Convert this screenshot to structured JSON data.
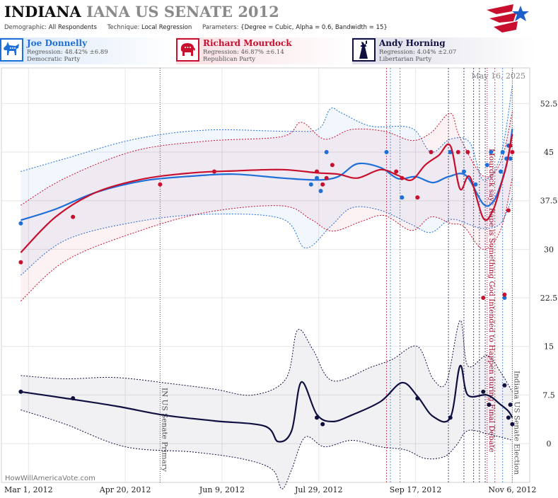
{
  "header": {
    "state": "INDIANA",
    "race": "IANA US SENATE 2012",
    "demographic_label": "Demographic:",
    "demographic": "All Respondents",
    "technique_label": "Technique:",
    "technique": "Local Regression",
    "parameters_label": "Parameters:",
    "parameters": "{Degree = Cubic, Alpha = 0.6, Bandwidth = 15}"
  },
  "candidates": [
    {
      "name": "Joe Donnelly",
      "regression": "Regression: 48.42% ±6.89",
      "party": "Democratic Party",
      "color": "#1f6fd8",
      "icon": "donkey-icon"
    },
    {
      "name": "Richard Mourdock",
      "regression": "Regression: 46.87% ±6.14",
      "party": "Republican Party",
      "color": "#c8102e",
      "icon": "elephant-icon"
    },
    {
      "name": "Andy Horning",
      "regression": "Regression: 4.04% ±2.07",
      "party": "Libertarian Party",
      "color": "#101040",
      "icon": "liberty-icon"
    }
  ],
  "date_stamp": "May 16, 2025",
  "credit": "HowWillAmericaVote.com",
  "chart_data": {
    "type": "line",
    "x_ticks": [
      "Mar 1, 2012",
      "Apr 20, 2012",
      "Jun 9, 2012",
      "Jul 29, 2012",
      "Sep 17, 2012",
      "Nov 6, 2012"
    ],
    "y_ticks": [
      0,
      7.5,
      15,
      22.5,
      30,
      37.5,
      45,
      52.5
    ],
    "ylim": [
      -6,
      58
    ],
    "xlim": [
      "2012-02-16",
      "2012-11-15"
    ],
    "events": [
      {
        "date": "2012-05-08",
        "label": "IN US Senate Primary",
        "color": "#555555"
      },
      {
        "date": "2012-10-24",
        "label": "Mourdock says Rape is Something God Intended to Happen during Final Debate",
        "color": "#a01030"
      },
      {
        "date": "2012-11-06",
        "label": "Indiana US Senate Election",
        "color": "#555555"
      }
    ],
    "series": [
      {
        "name": "Joe Donnelly",
        "color": "#1f6fd8",
        "line": [
          [
            "2012-02-26",
            34.5
          ],
          [
            "2012-03-15",
            36.2
          ],
          [
            "2012-04-05",
            38.8
          ],
          [
            "2012-04-30",
            40.6
          ],
          [
            "2012-05-25",
            41.3
          ],
          [
            "2012-06-15",
            41.6
          ],
          [
            "2012-07-10",
            41
          ],
          [
            "2012-07-28",
            40.7
          ],
          [
            "2012-08-08",
            41.2
          ],
          [
            "2012-08-18",
            43.2
          ],
          [
            "2012-08-30",
            42.6
          ],
          [
            "2012-09-08",
            40.9
          ],
          [
            "2012-09-17",
            41.2
          ],
          [
            "2012-09-26",
            40.3
          ],
          [
            "2012-10-04",
            41.2
          ],
          [
            "2012-10-13",
            41.4
          ],
          [
            "2012-10-22",
            37
          ],
          [
            "2012-10-27",
            37.3
          ],
          [
            "2012-10-31",
            40
          ],
          [
            "2012-11-04",
            44.4
          ],
          [
            "2012-11-06",
            48.6
          ]
        ],
        "upper": [
          [
            "2012-02-26",
            42
          ],
          [
            "2012-03-20",
            44
          ],
          [
            "2012-04-25",
            47
          ],
          [
            "2012-06-01",
            48.4
          ],
          [
            "2012-07-15",
            48.2
          ],
          [
            "2012-07-29",
            48.6
          ],
          [
            "2012-08-04",
            51.7
          ],
          [
            "2012-08-10",
            51
          ],
          [
            "2012-08-25",
            49
          ],
          [
            "2012-09-15",
            48.7
          ],
          [
            "2012-09-25",
            45
          ],
          [
            "2012-10-05",
            47
          ],
          [
            "2012-10-15",
            46.5
          ],
          [
            "2012-10-22",
            40.7
          ],
          [
            "2012-10-31",
            44.5
          ],
          [
            "2012-11-06",
            55.2
          ]
        ],
        "lower": [
          [
            "2012-02-26",
            26
          ],
          [
            "2012-03-20",
            31.4
          ],
          [
            "2012-04-25",
            34.2
          ],
          [
            "2012-06-01",
            35.4
          ],
          [
            "2012-07-10",
            34.7
          ],
          [
            "2012-07-22",
            30.2
          ],
          [
            "2012-08-04",
            33.5
          ],
          [
            "2012-08-15",
            36.4
          ],
          [
            "2012-08-30",
            36
          ],
          [
            "2012-09-15",
            33.8
          ],
          [
            "2012-09-25",
            32.6
          ],
          [
            "2012-10-05",
            34.6
          ],
          [
            "2012-10-15",
            33.8
          ],
          [
            "2012-10-22",
            33.2
          ],
          [
            "2012-10-31",
            34
          ],
          [
            "2012-11-06",
            38
          ]
        ],
        "points": [
          [
            "2012-02-26",
            34
          ],
          [
            "2012-07-25",
            40
          ],
          [
            "2012-07-28",
            41
          ],
          [
            "2012-07-30",
            39
          ],
          [
            "2012-08-02",
            45
          ],
          [
            "2012-09-02",
            45
          ],
          [
            "2012-09-10",
            38
          ],
          [
            "2012-10-05",
            45
          ],
          [
            "2012-10-12",
            42
          ],
          [
            "2012-10-18",
            40
          ],
          [
            "2012-10-24",
            43
          ],
          [
            "2012-10-26",
            45
          ],
          [
            "2012-10-31",
            42
          ],
          [
            "2012-11-01",
            45
          ],
          [
            "2012-11-02",
            22.5
          ],
          [
            "2012-11-03",
            44
          ],
          [
            "2012-11-04",
            46
          ],
          [
            "2012-11-05",
            44
          ]
        ]
      },
      {
        "name": "Richard Mourdock",
        "color": "#c8102e",
        "line": [
          [
            "2012-02-26",
            29.5
          ],
          [
            "2012-03-15",
            35
          ],
          [
            "2012-04-05",
            38.8
          ],
          [
            "2012-04-30",
            40.9
          ],
          [
            "2012-05-25",
            41.8
          ],
          [
            "2012-06-15",
            42.1
          ],
          [
            "2012-07-10",
            42.3
          ],
          [
            "2012-07-28",
            41.8
          ],
          [
            "2012-08-08",
            41.6
          ],
          [
            "2012-08-18",
            41
          ],
          [
            "2012-08-30",
            42.3
          ],
          [
            "2012-09-08",
            41.4
          ],
          [
            "2012-09-15",
            40.7
          ],
          [
            "2012-09-22",
            43
          ],
          [
            "2012-09-29",
            44.5
          ],
          [
            "2012-10-05",
            46
          ],
          [
            "2012-10-10",
            39.3
          ],
          [
            "2012-10-15",
            41.2
          ],
          [
            "2012-10-22",
            34.8
          ],
          [
            "2012-10-27",
            36
          ],
          [
            "2012-10-31",
            39.8
          ],
          [
            "2012-11-03",
            43
          ],
          [
            "2012-11-06",
            47.8
          ]
        ],
        "upper": [
          [
            "2012-02-26",
            36.8
          ],
          [
            "2012-03-20",
            41
          ],
          [
            "2012-04-25",
            45.2
          ],
          [
            "2012-06-01",
            46.7
          ],
          [
            "2012-07-10",
            47.4
          ],
          [
            "2012-07-20",
            49.6
          ],
          [
            "2012-08-01",
            47
          ],
          [
            "2012-08-15",
            48.5
          ],
          [
            "2012-09-01",
            48.2
          ],
          [
            "2012-09-15",
            46.8
          ],
          [
            "2012-09-25",
            48
          ],
          [
            "2012-10-05",
            51
          ],
          [
            "2012-10-10",
            47.2
          ],
          [
            "2012-10-22",
            41.3
          ],
          [
            "2012-10-31",
            43.5
          ],
          [
            "2012-11-06",
            51.2
          ]
        ],
        "lower": [
          [
            "2012-02-26",
            22
          ],
          [
            "2012-03-20",
            28.2
          ],
          [
            "2012-04-25",
            32.6
          ],
          [
            "2012-06-01",
            35.7
          ],
          [
            "2012-07-10",
            36.7
          ],
          [
            "2012-07-25",
            34.6
          ],
          [
            "2012-08-05",
            32.8
          ],
          [
            "2012-08-20",
            34.3
          ],
          [
            "2012-09-01",
            35.2
          ],
          [
            "2012-09-15",
            32.9
          ],
          [
            "2012-09-25",
            35
          ],
          [
            "2012-10-05",
            34
          ],
          [
            "2012-10-12",
            33.5
          ],
          [
            "2012-10-22",
            30
          ],
          [
            "2012-10-31",
            33
          ],
          [
            "2012-11-06",
            41
          ]
        ],
        "points": [
          [
            "2012-02-26",
            28
          ],
          [
            "2012-03-24",
            35
          ],
          [
            "2012-05-08",
            40
          ],
          [
            "2012-06-05",
            42
          ],
          [
            "2012-07-28",
            42
          ],
          [
            "2012-07-31",
            40
          ],
          [
            "2012-08-02",
            41
          ],
          [
            "2012-08-05",
            43
          ],
          [
            "2012-09-07",
            42
          ],
          [
            "2012-09-10",
            41
          ],
          [
            "2012-09-18",
            38
          ],
          [
            "2012-09-25",
            45
          ],
          [
            "2012-10-09",
            45
          ],
          [
            "2012-10-14",
            45
          ],
          [
            "2012-10-22",
            22.5
          ],
          [
            "2012-11-02",
            23
          ],
          [
            "2012-11-04",
            36
          ],
          [
            "2012-11-05",
            46
          ],
          [
            "2012-11-06",
            45
          ]
        ]
      },
      {
        "name": "Andy Horning",
        "color": "#101040",
        "line": [
          [
            "2012-02-26",
            8
          ],
          [
            "2012-03-20",
            7
          ],
          [
            "2012-04-15",
            5.8
          ],
          [
            "2012-05-10",
            4.4
          ],
          [
            "2012-06-05",
            3.5
          ],
          [
            "2012-07-01",
            2.7
          ],
          [
            "2012-07-08",
            0.3
          ],
          [
            "2012-07-15",
            2
          ],
          [
            "2012-07-20",
            9.5
          ],
          [
            "2012-07-28",
            4.5
          ],
          [
            "2012-08-05",
            3.4
          ],
          [
            "2012-08-15",
            4.4
          ],
          [
            "2012-08-30",
            6.5
          ],
          [
            "2012-09-10",
            9.4
          ],
          [
            "2012-09-18",
            7.3
          ],
          [
            "2012-09-26",
            4.2
          ],
          [
            "2012-10-05",
            4
          ],
          [
            "2012-10-10",
            12
          ],
          [
            "2012-10-14",
            7.5
          ],
          [
            "2012-10-24",
            7.5
          ],
          [
            "2012-10-31",
            6
          ],
          [
            "2012-11-04",
            5
          ],
          [
            "2012-11-06",
            4
          ]
        ],
        "upper": [
          [
            "2012-02-26",
            10.5
          ],
          [
            "2012-03-20",
            10
          ],
          [
            "2012-04-15",
            10.2
          ],
          [
            "2012-05-15",
            9.2
          ],
          [
            "2012-06-05",
            8.4
          ],
          [
            "2012-06-25",
            7.5
          ],
          [
            "2012-07-12",
            10
          ],
          [
            "2012-07-18",
            17.5
          ],
          [
            "2012-07-26",
            14.5
          ],
          [
            "2012-08-05",
            9.7
          ],
          [
            "2012-08-25",
            11.8
          ],
          [
            "2012-09-05",
            13
          ],
          [
            "2012-09-18",
            15
          ],
          [
            "2012-09-26",
            10
          ],
          [
            "2012-10-03",
            9.5
          ],
          [
            "2012-10-10",
            19
          ],
          [
            "2012-10-14",
            12
          ],
          [
            "2012-10-24",
            13.6
          ],
          [
            "2012-10-31",
            11
          ],
          [
            "2012-11-06",
            8
          ]
        ],
        "lower": [
          [
            "2012-02-26",
            5.2
          ],
          [
            "2012-03-20",
            3
          ],
          [
            "2012-04-20",
            -0.5
          ],
          [
            "2012-05-25",
            -1.3
          ],
          [
            "2012-06-20",
            -2.4
          ],
          [
            "2012-07-05",
            -4
          ],
          [
            "2012-07-10",
            -7
          ],
          [
            "2012-07-15",
            -4
          ],
          [
            "2012-07-22",
            1
          ],
          [
            "2012-08-01",
            -0.5
          ],
          [
            "2012-08-15",
            0.5
          ],
          [
            "2012-08-30",
            -0.5
          ],
          [
            "2012-09-12",
            -1
          ],
          [
            "2012-09-22",
            -2.3
          ],
          [
            "2012-10-02",
            -2
          ],
          [
            "2012-10-08",
            -0.3
          ],
          [
            "2012-10-14",
            2
          ],
          [
            "2012-10-24",
            1.5
          ],
          [
            "2012-10-31",
            1
          ],
          [
            "2012-11-06",
            0.5
          ]
        ],
        "points": [
          [
            "2012-02-26",
            8
          ],
          [
            "2012-03-24",
            7
          ],
          [
            "2012-07-28",
            4
          ],
          [
            "2012-07-31",
            3
          ],
          [
            "2012-09-18",
            7
          ],
          [
            "2012-10-05",
            4
          ],
          [
            "2012-10-22",
            8
          ],
          [
            "2012-10-25",
            6
          ],
          [
            "2012-11-02",
            9
          ],
          [
            "2012-11-04",
            4
          ],
          [
            "2012-11-05",
            6
          ],
          [
            "2012-11-06",
            3
          ]
        ]
      }
    ],
    "bands": [
      {
        "color": "#1f6fd8",
        "dates": [
          "2012-09-04",
          "2012-09-09",
          "2012-11-01"
        ]
      },
      {
        "color": "#c8102e",
        "dates": [
          "2012-09-02",
          "2012-10-28"
        ]
      },
      {
        "color": "#101040",
        "dates": [
          "2012-10-04",
          "2012-10-12",
          "2012-10-17",
          "2012-10-20",
          "2012-10-23"
        ]
      }
    ]
  }
}
